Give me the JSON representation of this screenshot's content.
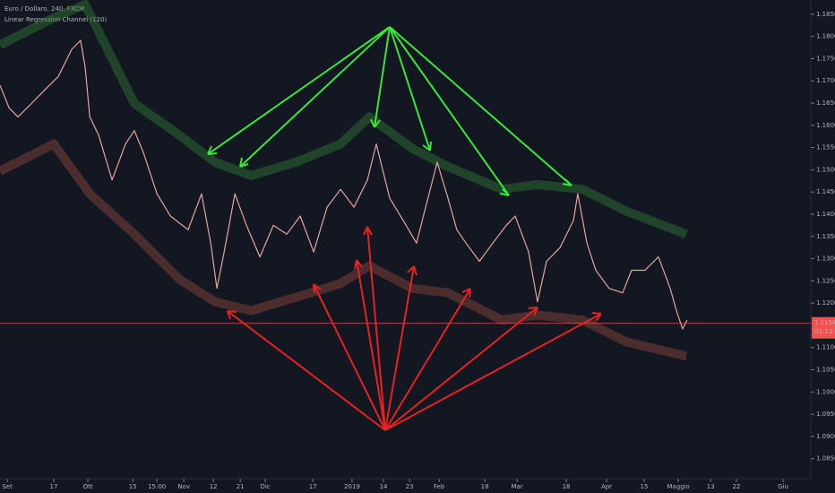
{
  "chart_data": {
    "type": "line",
    "title": "Euro / Dollaro, 240, FXCM",
    "subtitle": "Linear Regression Channel (120)",
    "xlim": [
      -2.7,
      299
    ],
    "ylim": [
      1.0805,
      1.1882
    ],
    "xticks": [
      {
        "value": 0,
        "label": "Set"
      },
      {
        "value": 17.3,
        "label": "17"
      },
      {
        "value": 30,
        "label": "Ott"
      },
      {
        "value": 46.7,
        "label": "15"
      },
      {
        "value": 55.7,
        "label": "15:00"
      },
      {
        "value": 65.7,
        "label": "Nov"
      },
      {
        "value": 76.7,
        "label": "12"
      },
      {
        "value": 86.7,
        "label": "21"
      },
      {
        "value": 96,
        "label": "Dic"
      },
      {
        "value": 113.7,
        "label": "17"
      },
      {
        "value": 128.3,
        "label": "2019"
      },
      {
        "value": 140,
        "label": "14"
      },
      {
        "value": 149.7,
        "label": "23"
      },
      {
        "value": 160.7,
        "label": "Feb"
      },
      {
        "value": 177.7,
        "label": "18"
      },
      {
        "value": 189.7,
        "label": "Mar"
      },
      {
        "value": 208,
        "label": "18"
      },
      {
        "value": 223,
        "label": "Apr"
      },
      {
        "value": 237,
        "label": "15"
      },
      {
        "value": 249.7,
        "label": "Maggio"
      },
      {
        "value": 261.7,
        "label": "13"
      },
      {
        "value": 271.3,
        "label": "22"
      },
      {
        "value": 288.7,
        "label": "Giu"
      }
    ],
    "yticks": [
      {
        "value": 1.185,
        "label": "1.18500"
      },
      {
        "value": 1.18,
        "label": "1.18000"
      },
      {
        "value": 1.175,
        "label": "1.17500"
      },
      {
        "value": 1.17,
        "label": "1.17000"
      },
      {
        "value": 1.165,
        "label": "1.16500"
      },
      {
        "value": 1.16,
        "label": "1.16000"
      },
      {
        "value": 1.155,
        "label": "1.15500"
      },
      {
        "value": 1.15,
        "label": "1.15000"
      },
      {
        "value": 1.145,
        "label": "1.14500"
      },
      {
        "value": 1.14,
        "label": "1.14000"
      },
      {
        "value": 1.135,
        "label": "1.13500"
      },
      {
        "value": 1.13,
        "label": "1.13000"
      },
      {
        "value": 1.125,
        "label": "1.12500"
      },
      {
        "value": 1.12,
        "label": "1.12000"
      },
      {
        "value": 1.11,
        "label": "1.11000"
      },
      {
        "value": 1.105,
        "label": "1.10500"
      },
      {
        "value": 1.1,
        "label": "1.10000"
      },
      {
        "value": 1.095,
        "label": "1.09500"
      },
      {
        "value": 1.09,
        "label": "1.09000"
      },
      {
        "value": 1.085,
        "label": "1.08500"
      }
    ],
    "last_price": {
      "value": 1.11544,
      "label": "1.11544",
      "countdown": "01:23:58",
      "color": "#ef5350"
    },
    "series": [
      {
        "name": "Price",
        "color": "#e8a49c",
        "x": [
          -2.7,
          0.7,
          4,
          9,
          14,
          19,
          24,
          27.3,
          29,
          30.7,
          34,
          39,
          44,
          47.3,
          50.7,
          55.7,
          60.7,
          67.3,
          72.3,
          75.7,
          78,
          80.7,
          84.7,
          89,
          94,
          99,
          104,
          109,
          114,
          119,
          124,
          129,
          134,
          137.3,
          142.3,
          147.3,
          152.3,
          155.7,
          160,
          164,
          167.3,
          170.7,
          175.7,
          180.7,
          185.7,
          189,
          194,
          197.3,
          200.7,
          205.7,
          210.7,
          212.3,
          215.7,
          219,
          224,
          229,
          232.3,
          237.3,
          242.3,
          246.7,
          249,
          251.3,
          253
        ],
        "values": [
          1.169,
          1.1639,
          1.1619,
          1.1649,
          1.168,
          1.171,
          1.1771,
          1.1791,
          1.173,
          1.1619,
          1.1578,
          1.1477,
          1.1558,
          1.1588,
          1.1538,
          1.1446,
          1.1396,
          1.1365,
          1.1446,
          1.1335,
          1.1233,
          1.1315,
          1.1446,
          1.1375,
          1.1304,
          1.1375,
          1.1355,
          1.1396,
          1.1315,
          1.1416,
          1.1456,
          1.1416,
          1.1477,
          1.1558,
          1.1436,
          1.1386,
          1.1335,
          1.1416,
          1.1517,
          1.1436,
          1.1365,
          1.1335,
          1.1294,
          1.1335,
          1.1375,
          1.1396,
          1.1315,
          1.1203,
          1.1294,
          1.1325,
          1.1386,
          1.1446,
          1.1335,
          1.1274,
          1.1233,
          1.1223,
          1.1274,
          1.1274,
          1.1304,
          1.1233,
          1.1183,
          1.1142,
          1.1162
        ]
      },
      {
        "name": "Upper",
        "color": "#2e7d32",
        "x": [
          -2.7,
          17.3,
          29,
          47.3,
          64,
          77.3,
          90.7,
          107.3,
          124,
          134.7,
          150.7,
          164,
          184,
          197.3,
          214,
          230.7,
          252.7
        ],
        "values": [
          1.1781,
          1.1842,
          1.1872,
          1.1649,
          1.1578,
          1.1517,
          1.1487,
          1.1517,
          1.1558,
          1.1619,
          1.1548,
          1.1507,
          1.1456,
          1.1467,
          1.1456,
          1.1406,
          1.1355
        ]
      },
      {
        "name": "Lower",
        "color": "#8d4a3a",
        "x": [
          -2.7,
          17.3,
          30.7,
          47.3,
          64,
          77.3,
          90.7,
          107.3,
          124,
          134.7,
          150.7,
          164,
          184,
          197.3,
          214,
          230.7,
          252.7
        ],
        "values": [
          1.1497,
          1.1558,
          1.1446,
          1.1355,
          1.1254,
          1.1203,
          1.1183,
          1.1213,
          1.1244,
          1.1284,
          1.1233,
          1.1223,
          1.1162,
          1.1173,
          1.1162,
          1.1112,
          1.1081
        ]
      }
    ]
  }
}
